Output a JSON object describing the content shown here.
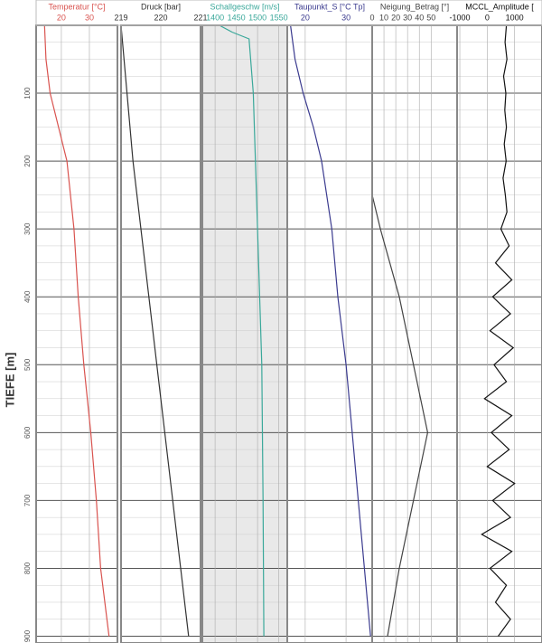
{
  "chart_data": [
    {
      "type": "line",
      "title": "Temperatur [°C]",
      "color": "#d9534f",
      "ylabel": "TIEFE [m]",
      "ylim": [
        0,
        910
      ],
      "yticks": [
        100,
        200,
        300,
        400,
        500,
        600,
        700,
        800,
        900
      ],
      "xlim": [
        11,
        40
      ],
      "xticks": [
        20,
        30
      ],
      "y": [
        0,
        50,
        100,
        150,
        200,
        300,
        400,
        500,
        600,
        700,
        800,
        900
      ],
      "values": [
        14,
        14.5,
        16,
        19,
        22,
        24.5,
        26,
        28,
        30.5,
        32.5,
        34,
        37
      ]
    },
    {
      "type": "line",
      "title": "Druck [bar]",
      "color": "#333333",
      "ylim": [
        0,
        910
      ],
      "xlim": [
        219,
        221
      ],
      "xticks": [
        219,
        220,
        221
      ],
      "y": [
        0,
        100,
        200,
        300,
        400,
        500,
        600,
        700,
        800,
        900
      ],
      "values": [
        219.0,
        219.15,
        219.3,
        219.5,
        219.7,
        219.9,
        220.1,
        220.3,
        220.5,
        220.7
      ]
    },
    {
      "type": "line",
      "title": "Schallgeschw [m/s]",
      "color": "#3aa89a",
      "background": "#e9e9e9",
      "ylim": [
        0,
        910
      ],
      "xlim": [
        1370,
        1570
      ],
      "xticks": [
        1400,
        1450,
        1500,
        1550
      ],
      "y": [
        0,
        10,
        20,
        100,
        300,
        500,
        700,
        900
      ],
      "values": [
        1410,
        1440,
        1480,
        1490,
        1500,
        1510,
        1513,
        1515
      ]
    },
    {
      "type": "line",
      "title": "Taupunkt_S [°C Tp]",
      "color": "#3b3b8f",
      "ylim": [
        0,
        910
      ],
      "xlim": [
        15.6,
        36.4
      ],
      "xticks": [
        20,
        30
      ],
      "y": [
        0,
        50,
        100,
        150,
        200,
        300,
        400,
        500,
        600,
        700,
        800,
        900
      ],
      "values": [
        16.4,
        17.5,
        19.5,
        22,
        24,
        26.5,
        28,
        30,
        31.5,
        33,
        34.5,
        36
      ]
    },
    {
      "type": "line",
      "title": "Neigung_Betrag [°]",
      "color": "#444444",
      "ylim": [
        0,
        910
      ],
      "xlim": [
        0,
        72
      ],
      "xticks": [
        0,
        10,
        20,
        30,
        40,
        50
      ],
      "y": [
        0,
        250,
        300,
        400,
        500,
        600,
        700,
        800,
        900
      ],
      "values": [
        0,
        0,
        7,
        23,
        35,
        47,
        35,
        23,
        13
      ]
    },
    {
      "type": "line",
      "title": "MCCL_Amplitude [",
      "color": "#111111",
      "ylim": [
        0,
        910
      ],
      "xlim": [
        -1100,
        2000
      ],
      "xticks": [
        -1000,
        0,
        1000
      ],
      "y": [
        0,
        25,
        50,
        75,
        100,
        125,
        150,
        175,
        200,
        225,
        250,
        275,
        300,
        325,
        350,
        375,
        400,
        425,
        450,
        475,
        500,
        525,
        550,
        575,
        600,
        625,
        650,
        675,
        700,
        725,
        750,
        775,
        800,
        825,
        850,
        875,
        900
      ],
      "values": [
        700,
        650,
        720,
        600,
        680,
        640,
        700,
        620,
        690,
        580,
        660,
        720,
        500,
        800,
        300,
        900,
        200,
        850,
        100,
        950,
        250,
        700,
        -100,
        900,
        150,
        800,
        0,
        1000,
        200,
        850,
        -200,
        900,
        100,
        700,
        300,
        850,
        400
      ]
    }
  ]
}
